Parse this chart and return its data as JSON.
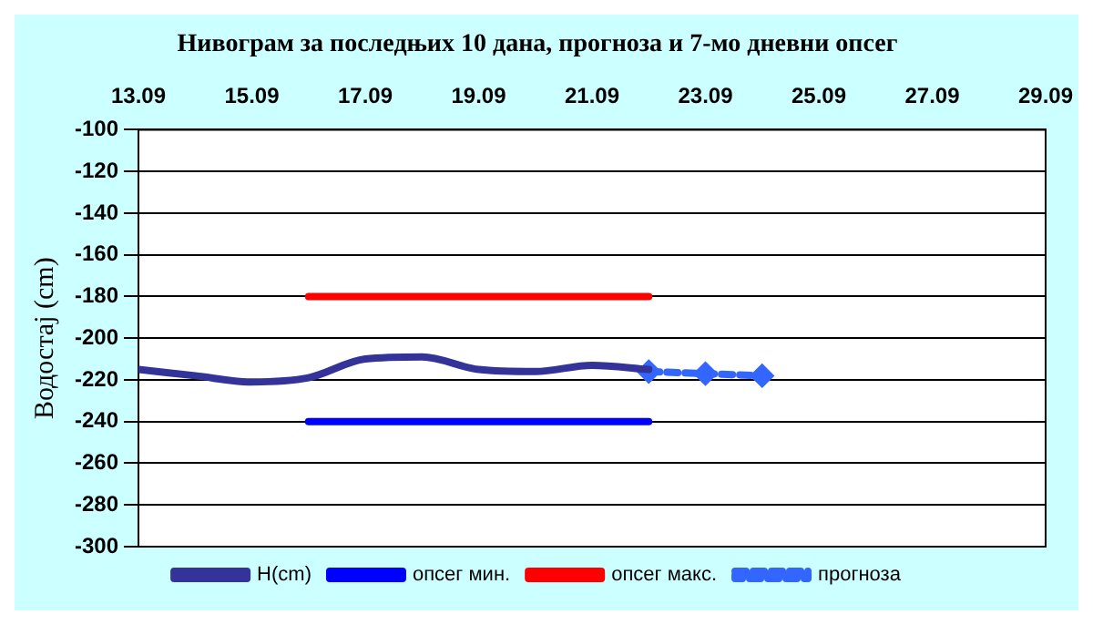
{
  "chart_data": {
    "type": "line",
    "title": "Нивограм за последњих 10 дана, прогноза и 7-мо дневни опсег",
    "ylabel": "Водостај (cm)",
    "xlim": [
      "--09-13",
      "--09-29"
    ],
    "xticks": [
      {
        "value": "--09-13",
        "label": "13.09"
      },
      {
        "value": "--09-15",
        "label": "15.09"
      },
      {
        "value": "--09-17",
        "label": "17.09"
      },
      {
        "value": "--09-19",
        "label": "19.09"
      },
      {
        "value": "--09-21",
        "label": "21.09"
      },
      {
        "value": "--09-23",
        "label": "23.09"
      },
      {
        "value": "--09-25",
        "label": "25.09"
      },
      {
        "value": "--09-27",
        "label": "27.09"
      },
      {
        "value": "--09-29",
        "label": "29.09"
      }
    ],
    "ylim": [
      -300,
      -100
    ],
    "yticks": [
      -300,
      -280,
      -260,
      -240,
      -220,
      -200,
      -180,
      -160,
      -140,
      -120,
      -100
    ],
    "grid": "y",
    "legend": "bottom",
    "series": [
      {
        "name": "H(cm)",
        "color": "#333399",
        "x": [
          "--09-13",
          "--09-14",
          "--09-15",
          "--09-16",
          "--09-17",
          "--09-18",
          "--09-19",
          "--09-20",
          "--09-21",
          "--09-22"
        ],
        "values": [
          -215,
          -218,
          -221,
          -219,
          -210,
          -209,
          -215,
          -216,
          -213,
          -215
        ],
        "marker": "none",
        "line_style": "solid"
      },
      {
        "name": "опсег мин.",
        "color": "#0000ff",
        "x": [
          "--09-16",
          "--09-22"
        ],
        "values": [
          -240,
          -240
        ],
        "marker": "none",
        "line_style": "solid"
      },
      {
        "name": "опсег макс.",
        "color": "#ff0000",
        "x": [
          "--09-16",
          "--09-22"
        ],
        "values": [
          -180,
          -180
        ],
        "marker": "none",
        "line_style": "solid"
      },
      {
        "name": "прогноза",
        "color": "#3366ff",
        "x": [
          "--09-22",
          "--09-23",
          "--09-24"
        ],
        "values": [
          -216,
          -217,
          -218
        ],
        "marker": "diamond",
        "line_style": "dashed"
      }
    ]
  }
}
